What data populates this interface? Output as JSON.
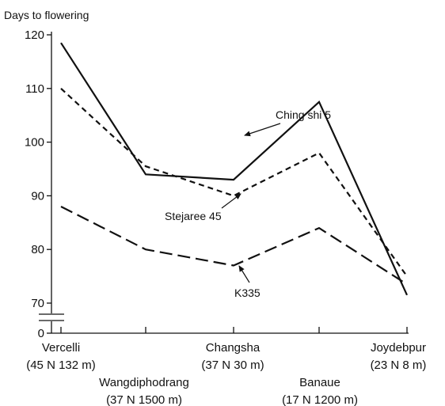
{
  "chart_data": {
    "type": "line",
    "ylabel": "Days to flowering",
    "xlabel": "",
    "yticks": [
      0,
      70,
      80,
      90,
      100,
      110,
      120
    ],
    "ylim": [
      70,
      120
    ],
    "axis_break": true,
    "grid": false,
    "legend": "none",
    "categories": [
      {
        "name": "Vercelli",
        "coords": "(45  N  132 m)"
      },
      {
        "name": "Wangdiphodrang",
        "coords": "(37  N  1500 m)"
      },
      {
        "name": "Changsha",
        "coords": "(37  N  30 m)"
      },
      {
        "name": "Banaue",
        "coords": "(17  N  1200 m)"
      },
      {
        "name": "Joydebpur",
        "coords": "(23  N  8 m)"
      }
    ],
    "series": [
      {
        "name": "Ching shi 5",
        "dash": "solid",
        "values": [
          118.5,
          94,
          93,
          107.5,
          71.5
        ]
      },
      {
        "name": "Stejaree 45",
        "dash": "short-dash",
        "values": [
          110,
          95.5,
          90,
          98,
          75
        ]
      },
      {
        "name": "K335",
        "dash": "long-dash",
        "values": [
          88,
          80,
          77,
          84,
          73.5
        ]
      }
    ],
    "annotations": [
      {
        "text": "Ching shi 5",
        "series": 0
      },
      {
        "text": "Stejaree 45",
        "series": 1
      },
      {
        "text": "K335",
        "series": 2
      }
    ]
  }
}
